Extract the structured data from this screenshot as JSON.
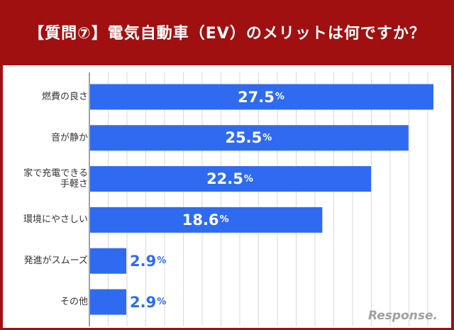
{
  "title": "【質問⑦】電気自動車（EV）のメリットは何ですか？",
  "watermark": "Response.",
  "colors": {
    "header": "#a01010",
    "bar": "#2f6bf0",
    "inside_label": "#ffffff",
    "outside_label": "#2f6bf0",
    "grid": "#d9d9d9"
  },
  "chart_data": {
    "type": "bar",
    "orientation": "horizontal",
    "categories": [
      "燃費の良さ",
      "音が静か",
      "家で充電できる手軽さ",
      "環境にやさしい",
      "発進がスムーズ",
      "その他"
    ],
    "category_display": [
      [
        "燃費の良さ"
      ],
      [
        "音が静か"
      ],
      [
        "家で充電できる",
        "手軽さ"
      ],
      [
        "環境にやさしい"
      ],
      [
        "発進がスムーズ"
      ],
      [
        "その他"
      ]
    ],
    "values": [
      27.5,
      25.5,
      22.5,
      18.6,
      2.9,
      2.9
    ],
    "value_labels": [
      "27.5",
      "25.5",
      "22.5",
      "18.6",
      "2.9",
      "2.9"
    ],
    "unit": "%",
    "xlim": [
      0,
      27.5
    ],
    "grid": true,
    "legend": "none"
  }
}
